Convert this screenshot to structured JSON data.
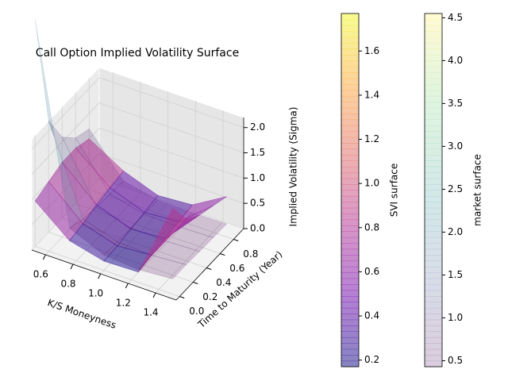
{
  "chart_data": {
    "type": "surface3d",
    "title": "Call Option Implied Volatility Surface",
    "x_label": "K/S Moneyness",
    "y_label": "Time to Maturity (Year)",
    "z_label": "Implied Volatility (Sigma)",
    "xlim": [
      0.5,
      1.55
    ],
    "ylim": [
      -0.05,
      0.95
    ],
    "zlim": [
      0,
      2.2
    ],
    "xticks": [
      0.6,
      0.8,
      {
        "value": 1.0,
        "label": "1.0"
      },
      1.2,
      1.4
    ],
    "yticks": [
      {
        "value": 0.0,
        "label": "0.0"
      },
      0.2,
      0.4,
      0.6,
      0.8
    ],
    "zticks": [
      {
        "value": 0.0,
        "label": "0.0"
      },
      0.5,
      {
        "value": 1.0,
        "label": "1.0"
      },
      1.5,
      {
        "value": 2.0,
        "label": "2.0"
      }
    ],
    "grid": true,
    "x": [
      0.5,
      0.75,
      1.0,
      1.25,
      1.5
    ],
    "y": [
      0.0,
      0.2,
      0.4,
      0.6,
      0.8
    ],
    "surfaces": [
      {
        "name": "market surface",
        "alpha": 0.2,
        "colormap": [
          "#440154",
          "#3b528b",
          "#21918c",
          "#5ec962",
          "#fde725"
        ],
        "clim": [
          0.43,
          4.55
        ],
        "cticks": [
          0.5,
          {
            "value": 1.0,
            "label": "1.0"
          },
          1.5,
          {
            "value": 2.0,
            "label": "2.0"
          },
          2.5,
          {
            "value": 3.0,
            "label": "3.0"
          },
          3.5,
          {
            "value": 4.0,
            "label": "4.0"
          },
          4.5
        ],
        "z": [
          [
            4.5,
            0.6,
            0.3,
            0.25,
            0.3
          ],
          [
            2.2,
            0.5,
            0.28,
            0.25,
            0.3
          ],
          [
            1.6,
            0.45,
            0.27,
            0.25,
            0.28
          ],
          [
            1.3,
            0.42,
            0.26,
            0.25,
            0.27
          ],
          [
            1.2,
            0.4,
            0.26,
            0.25,
            0.26
          ]
        ]
      },
      {
        "name": "SVI surface",
        "alpha": 0.5,
        "colormap": [
          "#0d0887",
          "#6a00a8",
          "#b12a90",
          "#e16462",
          "#fca636",
          "#f0f921"
        ],
        "clim": [
          0.17,
          1.77
        ],
        "cticks": [
          0.2,
          0.4,
          0.6,
          0.8,
          {
            "value": 1.0,
            "label": "1.0"
          },
          1.2,
          1.4,
          1.6
        ],
        "z": [
          [
            0.9,
            0.35,
            0.18,
            0.2,
            1.7
          ],
          [
            1.0,
            0.4,
            0.2,
            0.25,
            1.2
          ],
          [
            1.1,
            0.5,
            0.25,
            0.3,
            1.0
          ],
          [
            1.1,
            0.55,
            0.3,
            0.35,
            0.9
          ],
          [
            1.0,
            0.6,
            0.35,
            0.4,
            0.8
          ]
        ]
      }
    ]
  }
}
